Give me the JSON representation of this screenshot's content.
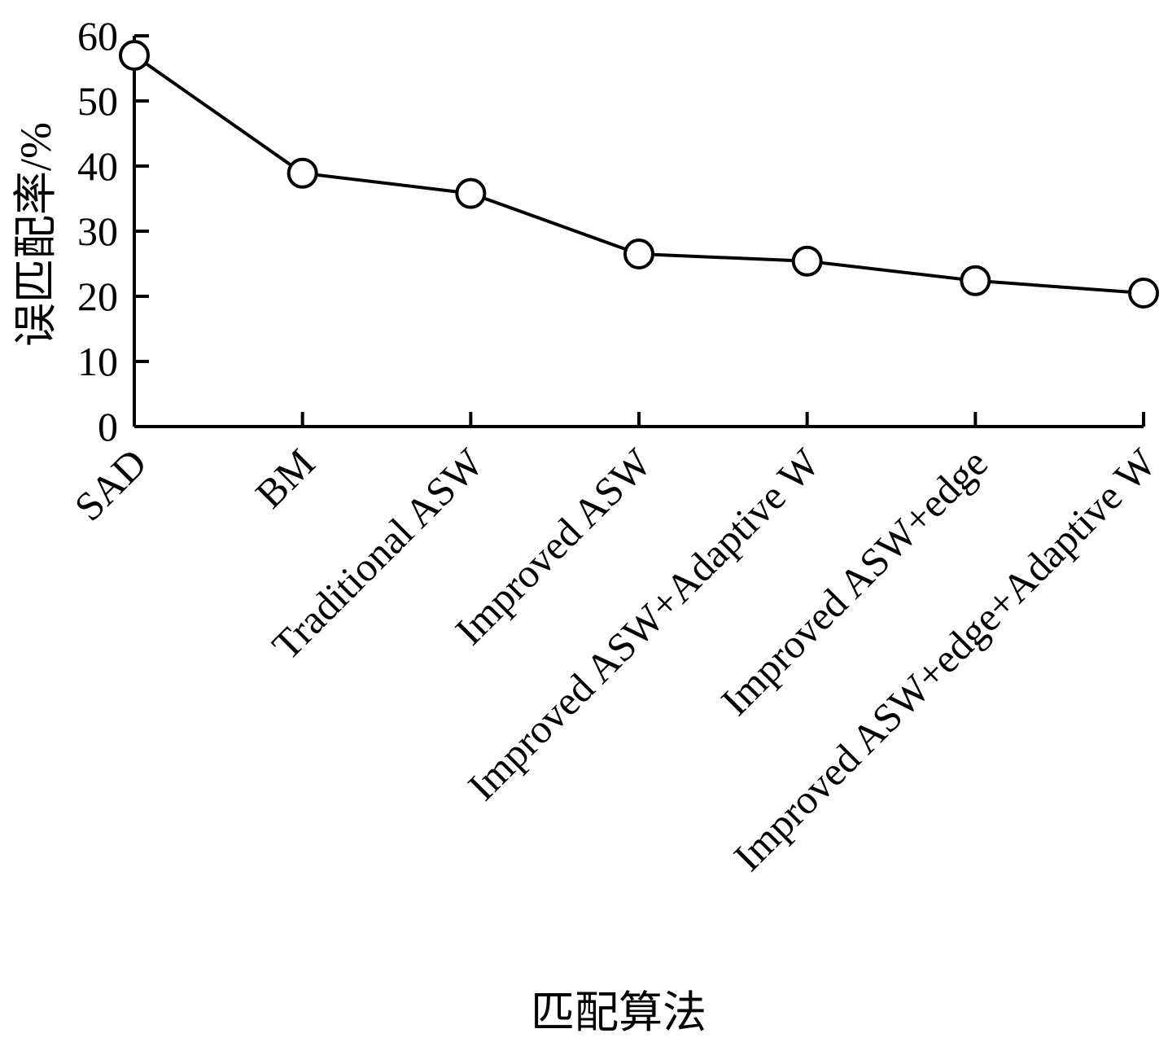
{
  "chart_data": {
    "type": "line",
    "xlabel": "匹配算法",
    "ylabel": "误匹配率/%",
    "categories": [
      "SAD",
      "BM",
      "Traditional ASW",
      "Improved ASW",
      "Improved ASW+Adaptive W",
      "Improved ASW+edge",
      "Improved ASW+edge+Adaptive W"
    ],
    "series": [
      {
        "values": [
          57.0,
          38.9,
          35.8,
          26.5,
          25.4,
          22.4,
          20.5
        ],
        "marker": "open-circle",
        "color": "#000000"
      }
    ],
    "ylim": [
      0,
      60
    ],
    "yticks": [
      0,
      10,
      20,
      30,
      40,
      50,
      60
    ],
    "grid": false,
    "legend": "none"
  }
}
